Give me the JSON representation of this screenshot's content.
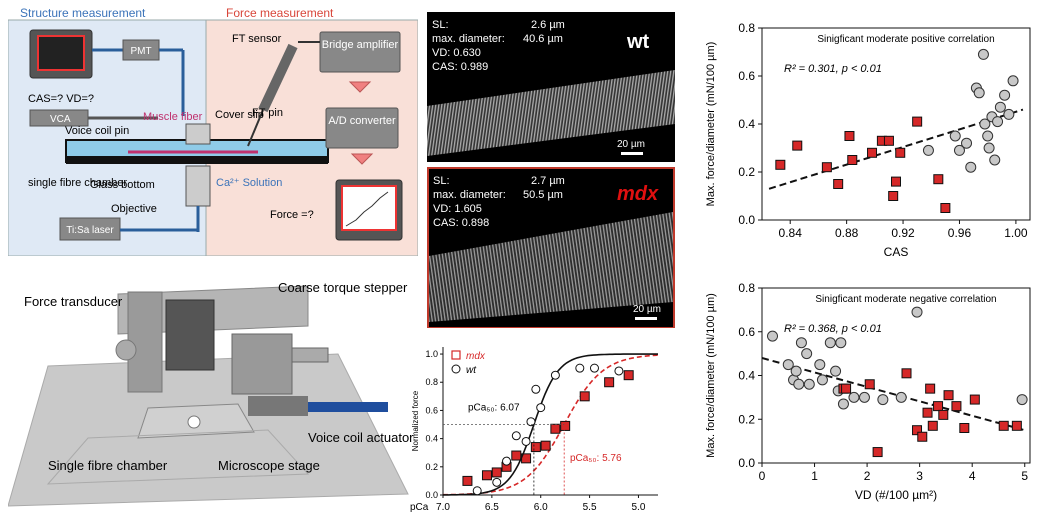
{
  "setup": {
    "structure_title": "Structure measurement",
    "force_title": "Force measurement",
    "pmt": "PMT",
    "cas_vd": "CAS=? VD=?",
    "vca": "VCA",
    "muscle_fiber": "Muscle fiber",
    "voice_coil_pin": "Voice coil pin",
    "cover_slip": "Cover slip",
    "single_fibre_chamber": "single fibre chamber",
    "glass_bottom": "Glass bottom",
    "ca_solution": "Ca²⁺ Solution",
    "objective": "Objective",
    "tisa_laser": "Ti:Sa laser",
    "ft_sensor": "FT sensor",
    "ft_pin": "FT pin",
    "bridge_amplifier": "Bridge amplifier",
    "ad_converter": "A/D converter",
    "force_q": "Force =?"
  },
  "apparatus": {
    "force_transducer": "Force transducer",
    "coarse_torque_stepper": "Coarse torque stepper",
    "voice_coil_actuator": "Voice coil actuator",
    "single_fibre_chamber": "Single fibre chamber",
    "microscope_stage": "Microscope stage"
  },
  "micrographs": {
    "wt": {
      "tag": "wt",
      "sl_label": "SL:",
      "sl_value": "2.6 µm",
      "diam_label": "max. diameter:",
      "diam_value": "40.6 µm",
      "vd": "VD: 0.630",
      "cas": "CAS: 0.989",
      "scale": "20 µm"
    },
    "mdx": {
      "tag": "mdx",
      "sl_label": "SL:",
      "sl_value": "2.7 µm",
      "diam_label": "max. diameter:",
      "diam_value": "50.5 µm",
      "vd": "VD: 1.605",
      "cas": "CAS: 0.898",
      "scale": "20 µm"
    },
    "colors": {
      "mdx_border": "#c0392b",
      "mdx_text": "#e01010"
    }
  },
  "chart_data": [
    {
      "type": "line",
      "xlabel": "pCa",
      "ylabel": "Normalized force",
      "xlim": [
        7.0,
        4.8
      ],
      "ylim": [
        0,
        1.05
      ],
      "xticks": [
        "7.0",
        "6.5",
        "6.0",
        "5.5",
        "5.0"
      ],
      "yticks": [
        "0.0",
        "0.2",
        "0.4",
        "0.6",
        "0.8",
        "1.0"
      ],
      "annotations": {
        "wt_pca50": "pCa₅₀: 6.07",
        "mdx_pca50": "pCa₅₀: 5.76"
      },
      "series": [
        {
          "name": "mdx",
          "marker": "square",
          "color": "#d62828",
          "pca50": 5.76,
          "x": [
            6.75,
            6.55,
            6.45,
            6.35,
            6.25,
            6.15,
            6.05,
            5.95,
            5.85,
            5.75,
            5.55,
            5.3,
            5.1
          ],
          "y": [
            0.1,
            0.14,
            0.16,
            0.2,
            0.28,
            0.26,
            0.34,
            0.35,
            0.47,
            0.49,
            0.7,
            0.8,
            0.85
          ]
        },
        {
          "name": "wt",
          "marker": "circle",
          "color": "#111111",
          "pca50": 6.07,
          "x": [
            6.65,
            6.45,
            6.35,
            6.25,
            6.15,
            6.1,
            6.05,
            6.0,
            5.85,
            5.6,
            5.45,
            5.2
          ],
          "y": [
            0.03,
            0.09,
            0.24,
            0.42,
            0.38,
            0.52,
            0.75,
            0.62,
            0.85,
            0.9,
            0.9,
            0.88
          ]
        }
      ]
    },
    {
      "type": "scatter",
      "title": "Sinigficant moderate positive correlation",
      "annotation": "R² = 0.301, p < 0.01",
      "xlabel": "CAS",
      "ylabel": "Max. force/diameter (mN/100 µm)",
      "xlim": [
        0.82,
        1.01
      ],
      "ylim": [
        0,
        0.8
      ],
      "xticks": [
        "0.84",
        "0.88",
        "0.92",
        "0.96",
        "1.00"
      ],
      "yticks": [
        "0.0",
        "0.2",
        "0.4",
        "0.6",
        "0.8"
      ],
      "series": [
        {
          "name": "mdx",
          "marker": "square",
          "color": "#d62828",
          "x": [
            0.833,
            0.845,
            0.866,
            0.874,
            0.882,
            0.884,
            0.898,
            0.905,
            0.91,
            0.913,
            0.915,
            0.918,
            0.93,
            0.945,
            0.95
          ],
          "y": [
            0.23,
            0.31,
            0.22,
            0.15,
            0.35,
            0.25,
            0.28,
            0.33,
            0.33,
            0.1,
            0.16,
            0.28,
            0.41,
            0.17,
            0.05
          ]
        },
        {
          "name": "wt",
          "marker": "circle",
          "color": "#c8c8c8",
          "x": [
            0.938,
            0.957,
            0.96,
            0.965,
            0.968,
            0.972,
            0.974,
            0.977,
            0.978,
            0.98,
            0.981,
            0.983,
            0.985,
            0.987,
            0.989,
            0.992,
            0.995,
            0.998
          ],
          "y": [
            0.29,
            0.35,
            0.29,
            0.32,
            0.22,
            0.55,
            0.53,
            0.69,
            0.4,
            0.35,
            0.3,
            0.43,
            0.25,
            0.41,
            0.47,
            0.52,
            0.44,
            0.58
          ]
        }
      ],
      "fit": {
        "x": [
          0.825,
          1.005
        ],
        "y": [
          0.13,
          0.46
        ]
      }
    },
    {
      "type": "scatter",
      "title": "Sinigficant moderate negative correlation",
      "annotation": "R² = 0.368, p < 0.01",
      "xlabel": "VD (#/100 µm²)",
      "ylabel": "Max. force/diameter (mN/100 µm)",
      "xlim": [
        0,
        5.1
      ],
      "ylim": [
        0,
        0.8
      ],
      "xticks": [
        "0",
        "1",
        "2",
        "3",
        "4",
        "5"
      ],
      "yticks": [
        "0.0",
        "0.2",
        "0.4",
        "0.6",
        "0.8"
      ],
      "series": [
        {
          "name": "wt",
          "marker": "circle",
          "color": "#c8c8c8",
          "x": [
            0.2,
            0.5,
            0.6,
            0.65,
            0.7,
            0.75,
            0.85,
            0.9,
            1.1,
            1.15,
            1.3,
            1.4,
            1.45,
            1.5,
            1.55,
            1.75,
            1.95,
            2.3,
            2.65,
            2.95,
            4.95
          ],
          "y": [
            0.58,
            0.45,
            0.38,
            0.42,
            0.36,
            0.55,
            0.5,
            0.36,
            0.45,
            0.38,
            0.55,
            0.42,
            0.33,
            0.55,
            0.27,
            0.3,
            0.3,
            0.29,
            0.3,
            0.69,
            0.29
          ]
        },
        {
          "name": "mdx",
          "marker": "square",
          "color": "#d62828",
          "x": [
            1.55,
            1.6,
            2.05,
            2.2,
            2.75,
            2.95,
            3.05,
            3.15,
            3.2,
            3.25,
            3.35,
            3.45,
            3.55,
            3.7,
            3.85,
            4.05,
            4.6,
            4.85
          ],
          "y": [
            0.34,
            0.34,
            0.36,
            0.05,
            0.41,
            0.15,
            0.12,
            0.23,
            0.34,
            0.17,
            0.26,
            0.22,
            0.31,
            0.26,
            0.16,
            0.29,
            0.17,
            0.17
          ]
        }
      ],
      "fit": {
        "x": [
          0,
          5.0
        ],
        "y": [
          0.48,
          0.15
        ]
      }
    }
  ]
}
